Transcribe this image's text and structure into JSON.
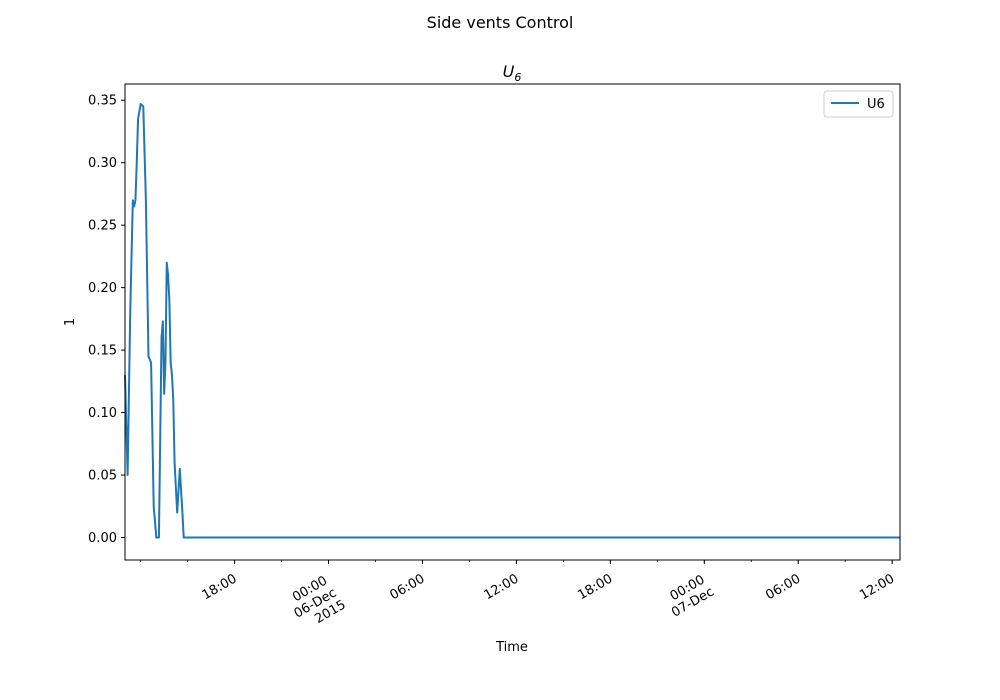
{
  "chart_data": {
    "type": "line",
    "suptitle": "Side vents Control",
    "title_main": "U",
    "title_sub": "6",
    "xlabel": "Time",
    "ylabel": "1",
    "ylim": [
      -0.018,
      0.363
    ],
    "xlim": [
      "2015-12-05 11:00",
      "2015-12-07 12:30"
    ],
    "yticks": [
      {
        "value": 0.0,
        "label": "0.00"
      },
      {
        "value": 0.05,
        "label": "0.05"
      },
      {
        "value": 0.1,
        "label": "0.10"
      },
      {
        "value": 0.15,
        "label": "0.15"
      },
      {
        "value": 0.2,
        "label": "0.20"
      },
      {
        "value": 0.25,
        "label": "0.25"
      },
      {
        "value": 0.3,
        "label": "0.30"
      },
      {
        "value": 0.35,
        "label": "0.35"
      }
    ],
    "xticks": [
      {
        "value": "2015-12-05 18:00",
        "lines": [
          "18:00"
        ]
      },
      {
        "value": "2015-12-06 00:00",
        "lines": [
          "00:00",
          "06-Dec",
          "2015"
        ]
      },
      {
        "value": "2015-12-06 06:00",
        "lines": [
          "06:00"
        ]
      },
      {
        "value": "2015-12-06 12:00",
        "lines": [
          "12:00"
        ]
      },
      {
        "value": "2015-12-06 18:00",
        "lines": [
          "18:00"
        ]
      },
      {
        "value": "2015-12-07 00:00",
        "lines": [
          "00:00",
          "07-Dec"
        ]
      },
      {
        "value": "2015-12-07 06:00",
        "lines": [
          "06:00"
        ]
      },
      {
        "value": "2015-12-07 12:00",
        "lines": [
          "12:00"
        ]
      }
    ],
    "legend": {
      "placement": "top-right"
    },
    "series": [
      {
        "name": "U6",
        "color": "#1f77b4",
        "x": [
          "2015-12-05 11:00",
          "2015-12-05 11:10",
          "2015-12-05 11:20",
          "2015-12-05 11:30",
          "2015-12-05 11:35",
          "2015-12-05 11:40",
          "2015-12-05 11:45",
          "2015-12-05 11:50",
          "2015-12-05 12:00",
          "2015-12-05 12:10",
          "2015-12-05 12:20",
          "2015-12-05 12:30",
          "2015-12-05 12:40",
          "2015-12-05 12:50",
          "2015-12-05 13:00",
          "2015-12-05 13:10",
          "2015-12-05 13:20",
          "2015-12-05 13:25",
          "2015-12-05 13:30",
          "2015-12-05 13:35",
          "2015-12-05 13:40",
          "2015-12-05 13:45",
          "2015-12-05 13:50",
          "2015-12-05 13:55",
          "2015-12-05 14:00",
          "2015-12-05 14:05",
          "2015-12-05 14:10",
          "2015-12-05 14:20",
          "2015-12-05 14:30",
          "2015-12-05 14:40",
          "2015-12-05 14:45",
          "2015-12-05 14:50",
          "2015-12-05 14:55",
          "2015-12-05 15:00",
          "2015-12-05 15:05",
          "2015-12-05 15:10",
          "2015-12-05 15:15",
          "2015-12-05 15:20",
          "2015-12-05 15:25",
          "2015-12-05 15:30",
          "2015-12-05 15:35",
          "2015-12-05 15:40",
          "2015-12-05 15:50",
          "2015-12-05 16:00",
          "2015-12-07 12:30"
        ],
        "y": [
          0.13,
          0.05,
          0.18,
          0.27,
          0.265,
          0.27,
          0.3,
          0.335,
          0.347,
          0.345,
          0.27,
          0.145,
          0.14,
          0.025,
          0.0,
          0.0,
          0.16,
          0.173,
          0.115,
          0.14,
          0.22,
          0.21,
          0.19,
          0.14,
          0.13,
          0.11,
          0.06,
          0.02,
          0.055,
          0.02,
          0.0,
          0.0,
          0.0,
          0.0,
          0.0,
          0.0,
          0.0,
          0.0,
          0.0,
          0.0,
          0.0,
          0.0,
          0.0,
          0.0,
          0.0
        ]
      }
    ]
  }
}
